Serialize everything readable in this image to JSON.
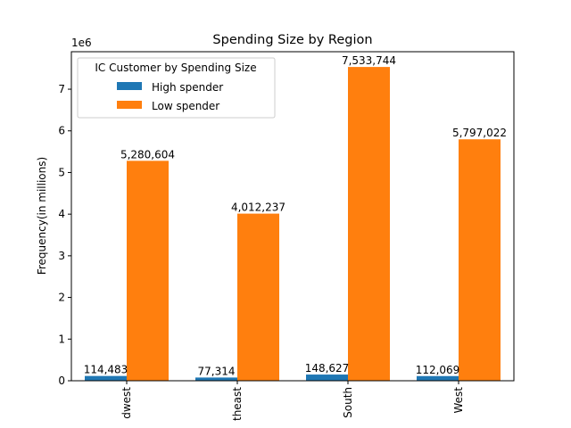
{
  "chart_data": {
    "type": "bar",
    "title": "Spending Size by Region",
    "xlabel": "",
    "ylabel": "Frequency(in millions)",
    "y_offset_text": "1e6",
    "categories": [
      "Midwest",
      "Northeast",
      "South",
      "West"
    ],
    "category_labels_visible": [
      "dwest",
      "theast",
      "South",
      "West"
    ],
    "ylim": [
      0,
      7900000
    ],
    "yticks": [
      0,
      1000000,
      2000000,
      3000000,
      4000000,
      5000000,
      6000000,
      7000000
    ],
    "ytick_labels": [
      "0",
      "1",
      "2",
      "3",
      "4",
      "5",
      "6",
      "7"
    ],
    "legend": {
      "title": "IC Customer by Spending Size",
      "placement": "top-left"
    },
    "series": [
      {
        "name": "High spender",
        "color": "#1f77b4",
        "values": [
          114483,
          77314,
          148627,
          112069
        ],
        "labels": [
          "114,483",
          "77,314",
          "148,627",
          "112,069"
        ]
      },
      {
        "name": "Low spender",
        "color": "#ff7f0e",
        "values": [
          5280604,
          4012237,
          7533744,
          5797022
        ],
        "labels": [
          "5,280,604",
          "4,012,237",
          "7,533,744",
          "5,797,022"
        ]
      }
    ]
  }
}
